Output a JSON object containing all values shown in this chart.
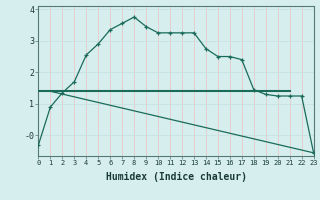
{
  "xlabel": "Humidex (Indice chaleur)",
  "background_color": "#d6eeee",
  "grid_color_v": "#e8c8c8",
  "grid_color_h": "#c8e0e0",
  "line_color": "#1a6b5a",
  "line1_x": [
    0,
    1,
    2,
    3,
    4,
    5,
    6,
    7,
    8,
    9,
    10,
    11,
    12,
    13,
    14,
    15,
    16,
    17,
    18,
    19,
    20,
    21,
    22,
    23
  ],
  "line1_y": [
    -0.3,
    0.9,
    1.35,
    1.7,
    2.55,
    2.9,
    3.35,
    3.55,
    3.75,
    3.45,
    3.25,
    3.25,
    3.25,
    3.25,
    2.75,
    2.5,
    2.5,
    2.4,
    1.45,
    1.3,
    1.25,
    1.25,
    1.25,
    -0.55
  ],
  "line2_x": [
    0,
    21
  ],
  "line2_y": [
    1.4,
    1.4
  ],
  "line3_x": [
    1,
    23
  ],
  "line3_y": [
    1.4,
    -0.55
  ],
  "xlim": [
    0,
    23
  ],
  "ylim": [
    -0.65,
    4.1
  ],
  "yticks": [
    0,
    1,
    2,
    3,
    4
  ],
  "ytick_labels": [
    "-0",
    "1",
    "2",
    "3",
    "4"
  ],
  "xticks": [
    0,
    1,
    2,
    3,
    4,
    5,
    6,
    7,
    8,
    9,
    10,
    11,
    12,
    13,
    14,
    15,
    16,
    17,
    18,
    19,
    20,
    21,
    22,
    23
  ]
}
